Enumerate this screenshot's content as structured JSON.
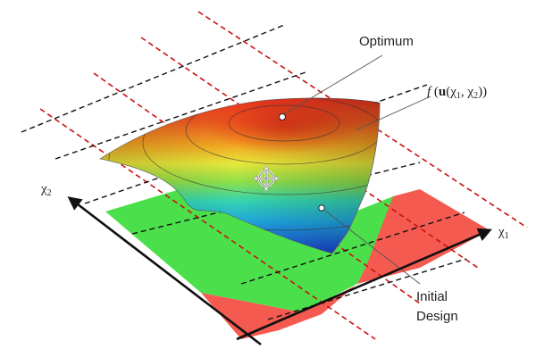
{
  "labels": {
    "optimum": "Optimum",
    "function_prefix": "f",
    "function_open": " (",
    "function_u": "u",
    "function_args": "(χ",
    "function_sub1": "1",
    "function_sep": ", χ",
    "function_sub2": "2",
    "function_close": "))",
    "initial_line1": "Initial",
    "initial_line2": "Design",
    "axis_x1": "χ",
    "axis_x1_sub": "1",
    "axis_x2": "χ",
    "axis_x2_sub": "2"
  },
  "colors": {
    "feasible_region": "#4be04b",
    "infeasible_region": "#f55a50",
    "red_dashed": "#cc1111",
    "black_dashed": "#111111",
    "axis": "#111111"
  },
  "icons": {
    "cursor": "move-crosshair-icon"
  }
}
